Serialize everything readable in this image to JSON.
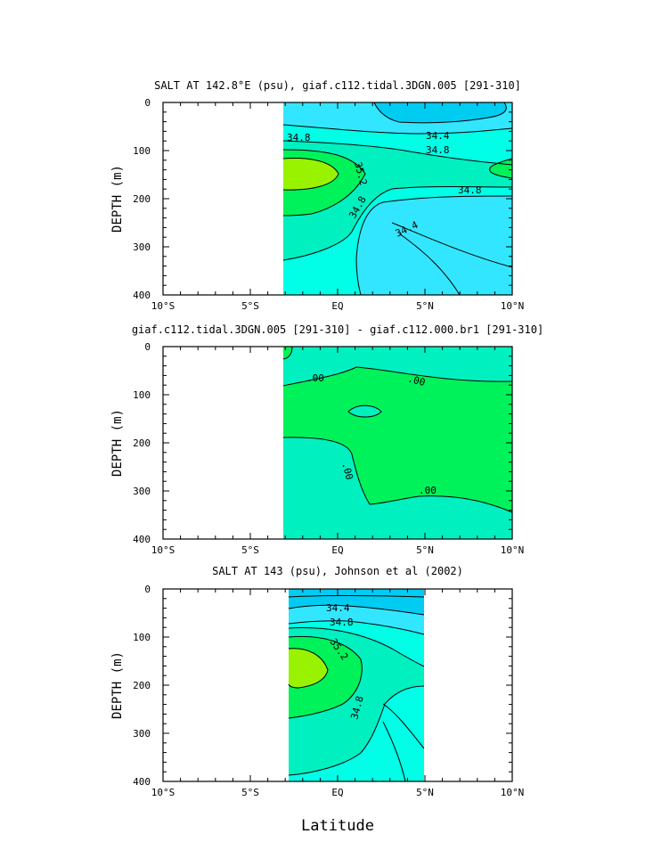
{
  "chart_data": [
    {
      "type": "contour",
      "title": "SALT AT 142.8°E (psu), giaf.c112.tidal.3DGN.005 [291-310]",
      "ylabel": "DEPTH (m)",
      "xlabel": "",
      "xlim": [
        -10,
        10
      ],
      "ylim": [
        400,
        0
      ],
      "x_ticks": [
        "10°S",
        "5°S",
        "EQ",
        "5°N",
        "10°N"
      ],
      "y_ticks": [
        "0",
        "100",
        "200",
        "300",
        "400"
      ],
      "data_lon_range": [
        -3,
        10
      ],
      "contour_labels": [
        "34.8",
        "34.4",
        "34.8",
        "35.2",
        "34.8",
        "34.8",
        "34.4"
      ],
      "colors": [
        "#00ccf2",
        "#33e6ff",
        "#00ffe6",
        "#00f0c0",
        "#00f25a",
        "#99f200"
      ]
    },
    {
      "type": "contour",
      "title": "giaf.c112.tidal.3DGN.005 [291-310] - giaf.c112.000.br1 [291-310]",
      "ylabel": "DEPTH (m)",
      "xlabel": "",
      "xlim": [
        -10,
        10
      ],
      "ylim": [
        400,
        0
      ],
      "x_ticks": [
        "10°S",
        "5°S",
        "EQ",
        "5°N",
        "10°N"
      ],
      "y_ticks": [
        "0",
        "100",
        "200",
        "300",
        "400"
      ],
      "data_lon_range": [
        -3,
        10
      ],
      "contour_labels": [
        ".00",
        ".00",
        ".00",
        ".00"
      ],
      "colors": [
        "#00f0c0",
        "#00f25a"
      ]
    },
    {
      "type": "contour",
      "title": "SALT AT 143 (psu), Johnson et al (2002)",
      "ylabel": "DEPTH (m)",
      "xlabel": "Latitude",
      "xlim": [
        -10,
        10
      ],
      "ylim": [
        400,
        0
      ],
      "x_ticks": [
        "10°S",
        "5°S",
        "EQ",
        "5°N",
        "10°N"
      ],
      "y_ticks": [
        "0",
        "100",
        "200",
        "300",
        "400"
      ],
      "data_lon_range": [
        -2.8,
        5
      ],
      "contour_labels": [
        "34.4",
        "34.8",
        "35.2",
        "34.8"
      ],
      "colors": [
        "#00ccf2",
        "#33e6ff",
        "#00ffe6",
        "#00f0c0",
        "#00f25a",
        "#99f200"
      ]
    }
  ]
}
